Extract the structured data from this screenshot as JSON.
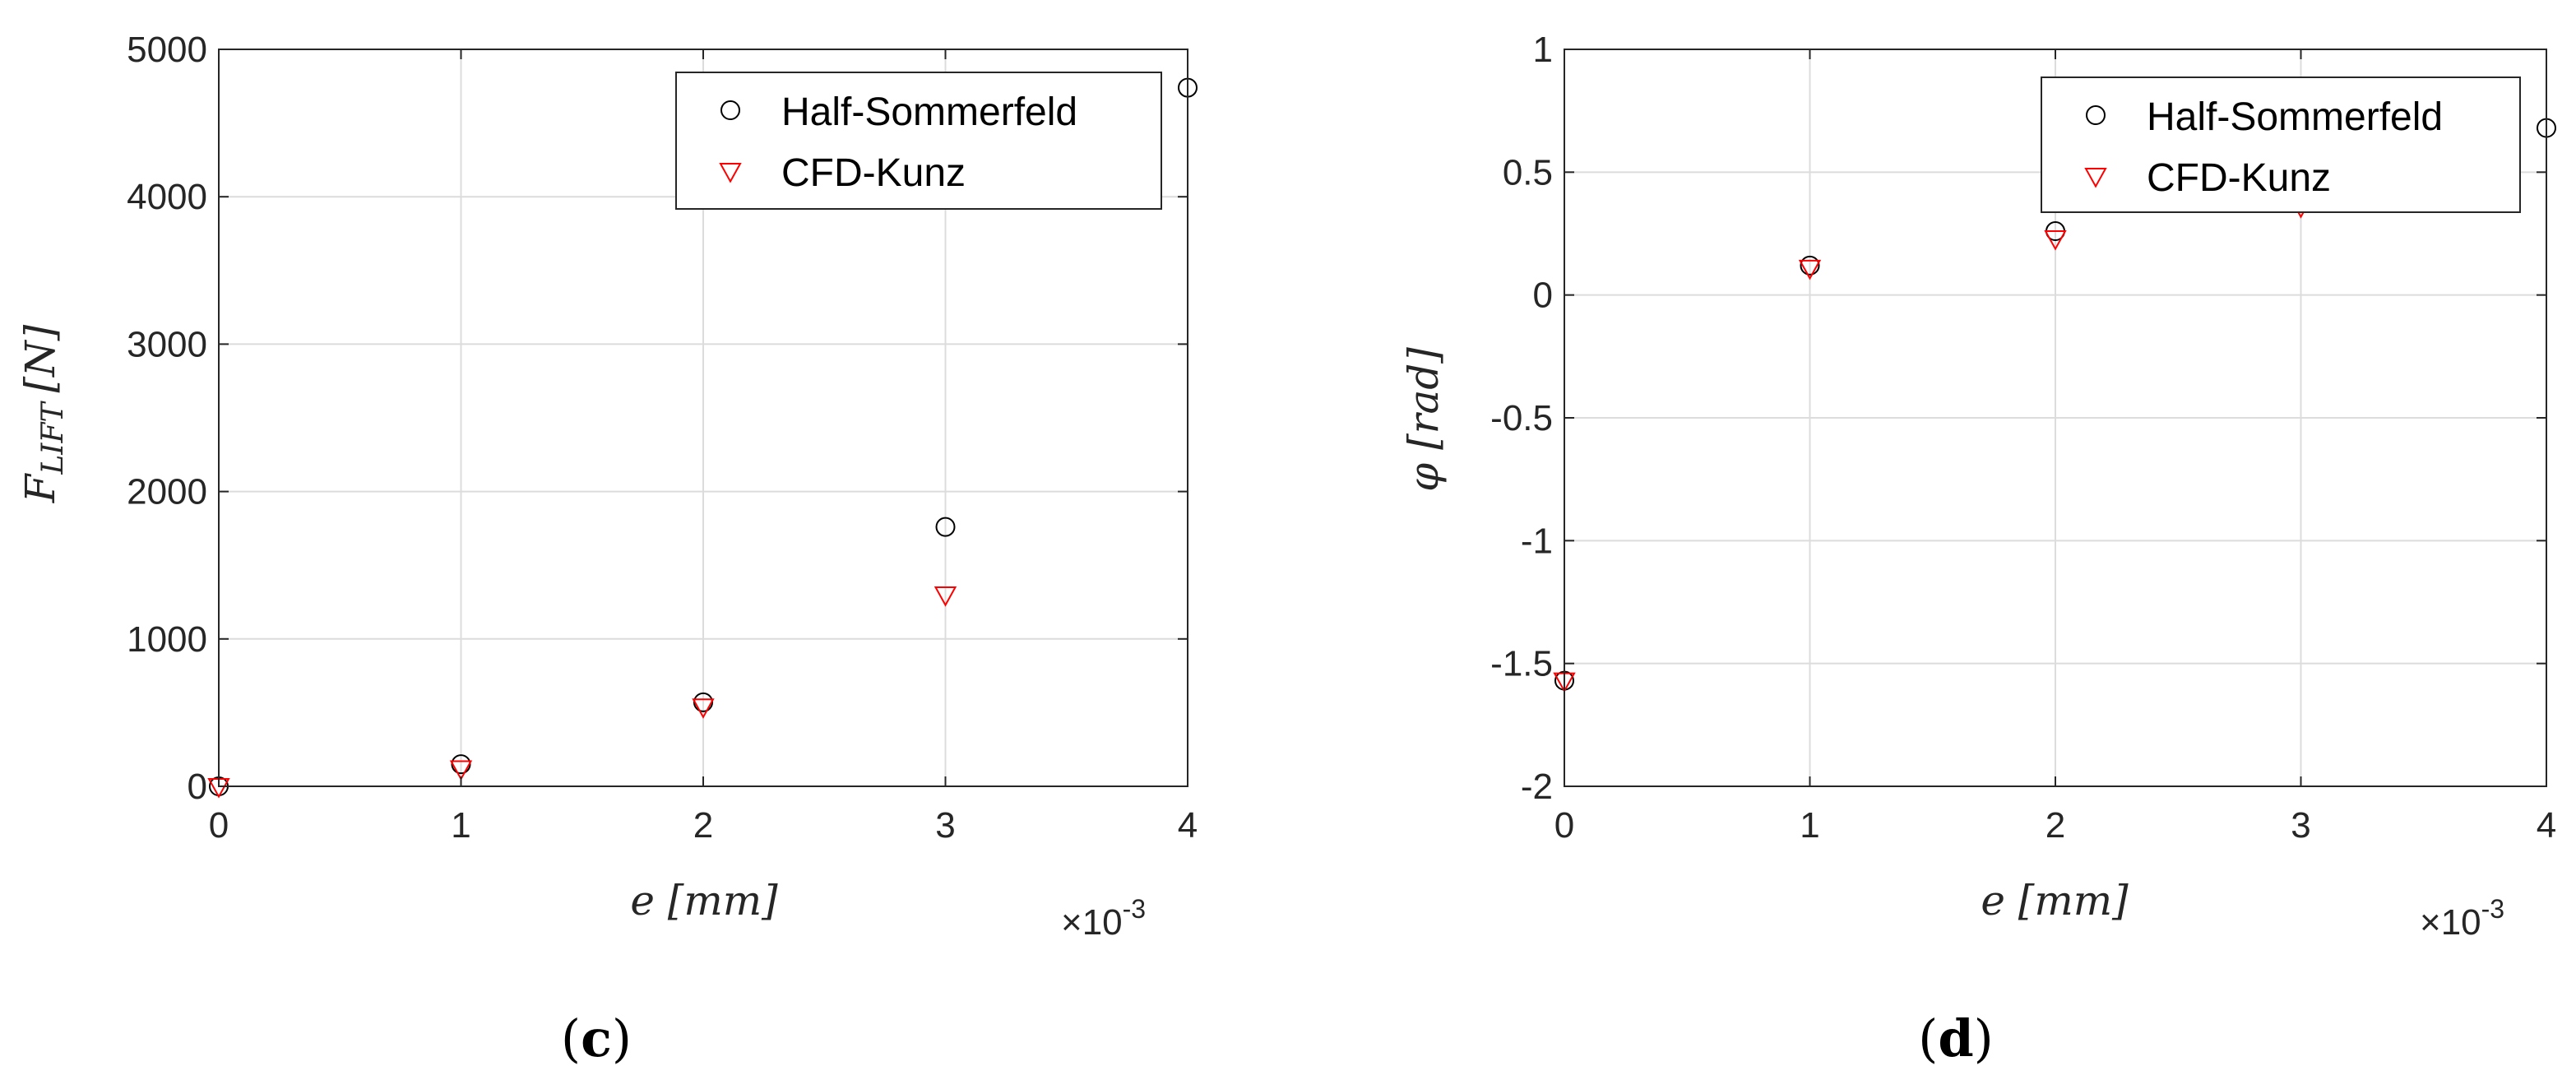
{
  "chart_data": [
    {
      "type": "scatter",
      "panel_label": "c",
      "xlabel": "e [mm]",
      "ylabel": "F",
      "ylabel_sub": "LIFT",
      "ylabel_unit": "[N]",
      "x_multiplier": "×10",
      "x_multiplier_exp": "-3",
      "xlim": [
        0,
        0.004
      ],
      "ylim": [
        0,
        5000
      ],
      "xticks": [
        0,
        0.001,
        0.002,
        0.003,
        0.004
      ],
      "xtick_labels": [
        "0",
        "1",
        "2",
        "3",
        "4"
      ],
      "yticks": [
        0,
        1000,
        2000,
        3000,
        4000,
        5000
      ],
      "ytick_labels": [
        "0",
        "1000",
        "2000",
        "3000",
        "4000",
        "5000"
      ],
      "grid": true,
      "legend_position": "top-right",
      "series": [
        {
          "name": "Half-Sommerfeld",
          "marker": "circle",
          "color": "#000000",
          "x": [
            0,
            0.001,
            0.002,
            0.003,
            0.004
          ],
          "y": [
            0,
            150,
            570,
            1760,
            4740
          ]
        },
        {
          "name": "CFD-Kunz",
          "marker": "triangle-down",
          "color": "#ff0000",
          "x": [
            0,
            0.001,
            0.002,
            0.003
          ],
          "y": [
            0,
            120,
            540,
            1300
          ]
        }
      ]
    },
    {
      "type": "scatter",
      "panel_label": "d",
      "xlabel": "e [mm]",
      "ylabel": "φ [rad]",
      "x_multiplier": "×10",
      "x_multiplier_exp": "-3",
      "xlim": [
        0,
        0.004
      ],
      "ylim": [
        -2,
        1
      ],
      "xticks": [
        0,
        0.001,
        0.002,
        0.003,
        0.004
      ],
      "xtick_labels": [
        "0",
        "1",
        "2",
        "3",
        "4"
      ],
      "yticks": [
        1,
        0.5,
        0,
        -0.5,
        -1,
        -1.5,
        -2
      ],
      "ytick_labels": [
        "1",
        "0.5",
        "0",
        "-0.5",
        "-1",
        "-1.5",
        "-2"
      ],
      "grid": true,
      "legend_position": "top-right",
      "series": [
        {
          "name": "Half-Sommerfeld",
          "marker": "circle",
          "color": "#000000",
          "x": [
            0,
            0.001,
            0.002,
            0.003,
            0.004
          ],
          "y": [
            -1.57,
            0.12,
            0.26,
            0.38,
            0.68
          ]
        },
        {
          "name": "CFD-Kunz",
          "marker": "triangle-down",
          "color": "#ff0000",
          "x": [
            0,
            0.001,
            0.002,
            0.003
          ],
          "y": [
            -1.57,
            0.11,
            0.23,
            0.36
          ]
        }
      ]
    }
  ]
}
